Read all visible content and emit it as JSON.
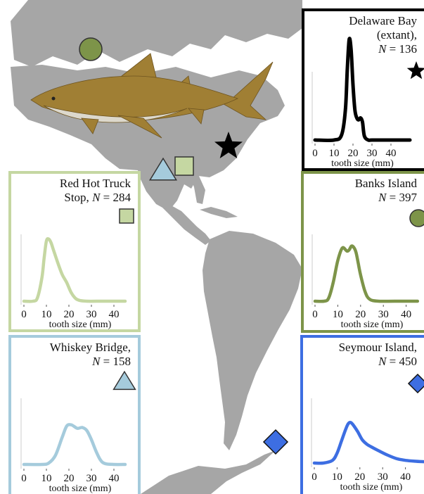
{
  "chart_data": [
    {
      "type": "line",
      "site": "Delaware Bay",
      "status": "(extant),",
      "n_label": "N",
      "n_value": "136",
      "marker": "star",
      "color": "#000000",
      "x_ticks": [
        "0",
        "10",
        "20",
        "30",
        "40"
      ],
      "xlabel": "tooth size (mm)",
      "xlim": [
        0,
        50
      ],
      "x": [
        0,
        10,
        14,
        16,
        17,
        18,
        19,
        20,
        21,
        22,
        23,
        24,
        25,
        26,
        28,
        30,
        40,
        50
      ],
      "y": [
        0,
        0,
        0.05,
        0.3,
        0.7,
        1.0,
        0.9,
        0.55,
        0.3,
        0.22,
        0.2,
        0.22,
        0.18,
        0.04,
        0,
        0,
        0,
        0
      ]
    },
    {
      "type": "line",
      "site": "Red Hot Truck",
      "site_line2": "Stop,",
      "n_label": "N",
      "n_value": "284",
      "marker": "square",
      "color": "#c5d7a2",
      "x_ticks": [
        "0",
        "10",
        "20",
        "30",
        "40"
      ],
      "xlabel": "tooth size (mm)",
      "xlim": [
        0,
        50
      ],
      "x": [
        0,
        4,
        6,
        8,
        9,
        10,
        11,
        12,
        13,
        15,
        17,
        19,
        21,
        23,
        25,
        28,
        35,
        45
      ],
      "y": [
        0,
        0,
        0.05,
        0.35,
        0.65,
        0.9,
        0.93,
        0.88,
        0.78,
        0.58,
        0.4,
        0.28,
        0.13,
        0.04,
        0.01,
        0,
        0,
        0
      ]
    },
    {
      "type": "line",
      "site": "Banks Island",
      "n_label": "N",
      "n_value": "397",
      "marker": "circle",
      "color": "#7d9449",
      "x_ticks": [
        "0",
        "10",
        "20",
        "30",
        "40"
      ],
      "xlabel": "tooth size (mm)",
      "xlim": [
        0,
        50
      ],
      "x": [
        0,
        4,
        6,
        8,
        10,
        12,
        14,
        15,
        16,
        17,
        18,
        19,
        20,
        22,
        24,
        28,
        35,
        45
      ],
      "y": [
        0,
        0,
        0.05,
        0.3,
        0.65,
        0.85,
        0.8,
        0.82,
        0.88,
        0.86,
        0.78,
        0.6,
        0.42,
        0.15,
        0.03,
        0,
        0,
        0
      ]
    },
    {
      "type": "line",
      "site": "Whiskey Bridge,",
      "n_label": "N",
      "n_value": "158",
      "marker": "triangle",
      "color": "#a5cbdc",
      "x_ticks": [
        "0",
        "10",
        "20",
        "30",
        "40"
      ],
      "xlabel": "tooth size (mm)",
      "xlim": [
        0,
        50
      ],
      "x": [
        0,
        8,
        11,
        14,
        17,
        19,
        21,
        23,
        24,
        26,
        28,
        30,
        32,
        34,
        36,
        40,
        45
      ],
      "y": [
        0,
        0,
        0.03,
        0.2,
        0.6,
        0.85,
        0.88,
        0.82,
        0.8,
        0.82,
        0.75,
        0.55,
        0.3,
        0.1,
        0.02,
        0,
        0
      ]
    },
    {
      "type": "line",
      "site": "Seymour Island,",
      "n_label": "N",
      "n_value": "450",
      "marker": "diamond",
      "color": "#3d6ee2",
      "x_ticks": [
        "0",
        "10",
        "20",
        "30",
        "40"
      ],
      "xlabel": "tooth size (mm)",
      "xlim": [
        0,
        50
      ],
      "x": [
        0,
        4,
        8,
        10,
        12,
        14,
        15,
        16,
        17,
        19,
        21,
        23,
        25,
        28,
        32,
        36,
        40,
        44,
        48
      ],
      "y": [
        0,
        0,
        0.06,
        0.22,
        0.5,
        0.78,
        0.88,
        0.9,
        0.85,
        0.7,
        0.52,
        0.42,
        0.36,
        0.28,
        0.18,
        0.1,
        0.06,
        0.04,
        0.03
      ]
    }
  ],
  "map_markers": [
    {
      "shape": "circle",
      "color": "#7d9449"
    },
    {
      "shape": "star",
      "color": "#000000"
    },
    {
      "shape": "triangle",
      "color": "#a5cbdc"
    },
    {
      "shape": "square",
      "color": "#c5d7a2"
    },
    {
      "shape": "diamond",
      "color": "#3d6ee2"
    }
  ],
  "colors": {
    "land": "#a6a6a6",
    "shark_body": "#a07f34",
    "shark_belly": "#dcd8cc"
  }
}
